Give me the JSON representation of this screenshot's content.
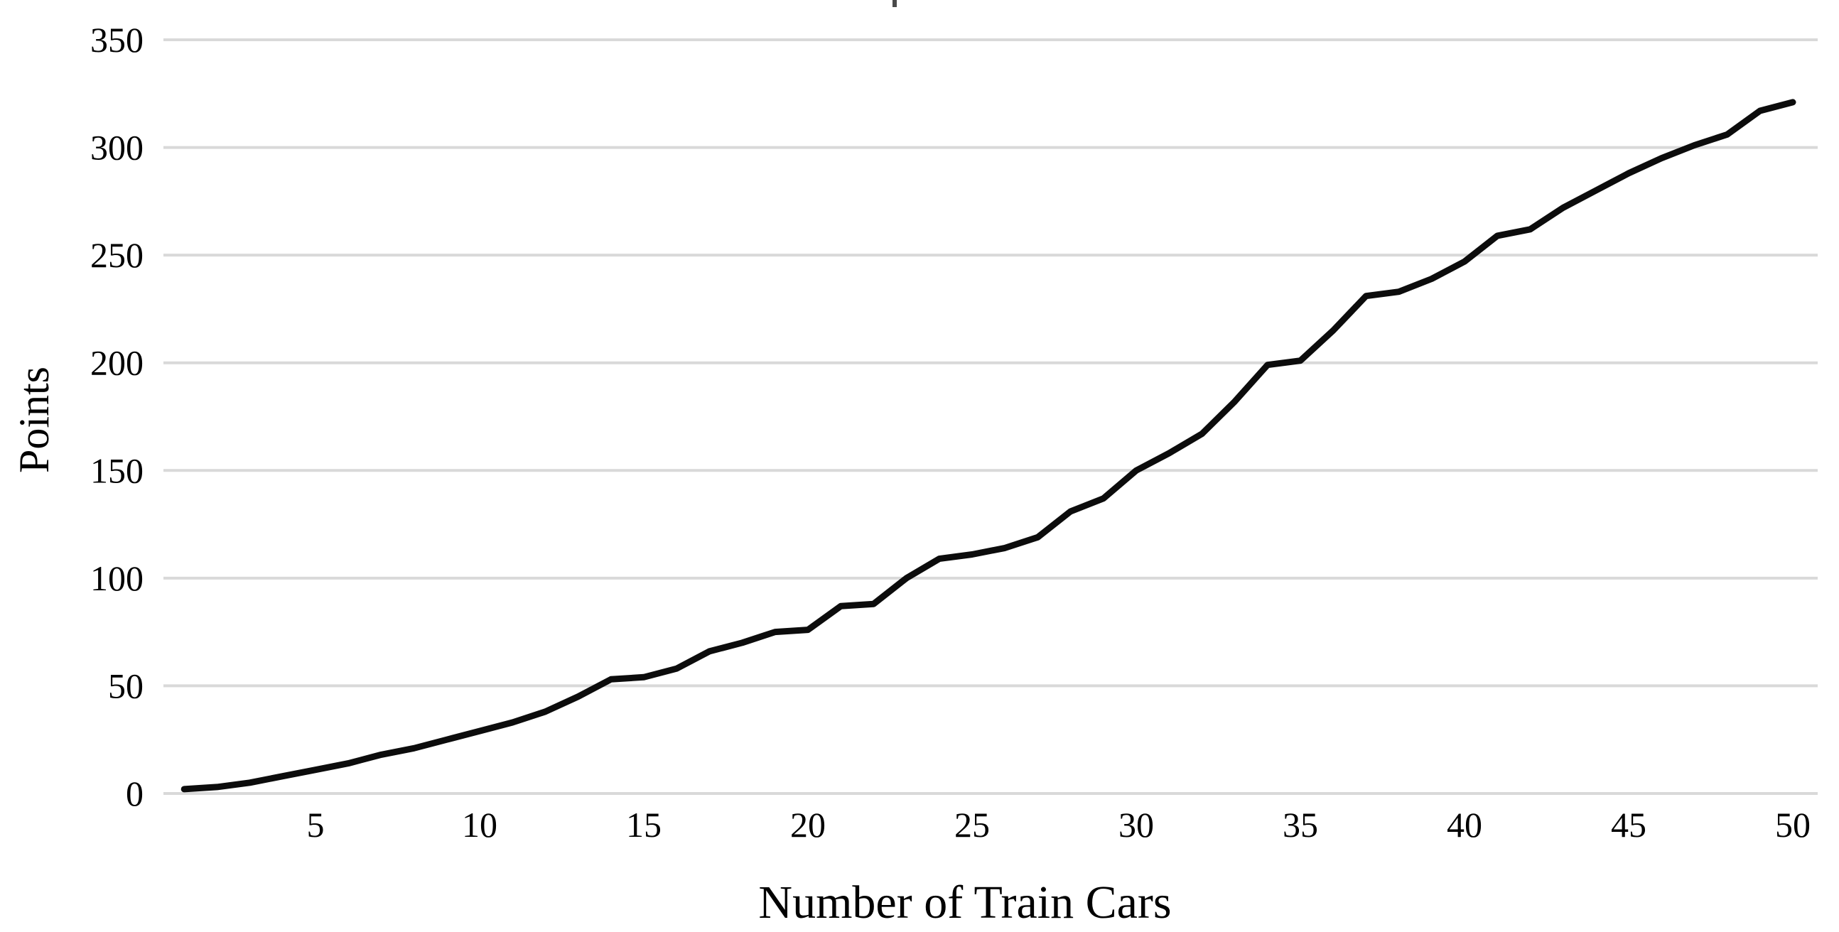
{
  "chart_data": {
    "type": "line",
    "title": "",
    "xlabel": "Number of Train Cars",
    "ylabel": "Points",
    "x": [
      1,
      2,
      3,
      4,
      5,
      6,
      7,
      8,
      9,
      10,
      11,
      12,
      13,
      14,
      15,
      16,
      17,
      18,
      19,
      20,
      21,
      22,
      23,
      24,
      25,
      26,
      27,
      28,
      29,
      30,
      31,
      32,
      33,
      34,
      35,
      36,
      37,
      38,
      39,
      40,
      41,
      42,
      43,
      44,
      45,
      46,
      47,
      48,
      49,
      50
    ],
    "series": [
      {
        "name": "Points",
        "values": [
          2,
          3,
          5,
          8,
          11,
          14,
          18,
          21,
          25,
          29,
          33,
          38,
          45,
          53,
          54,
          58,
          66,
          70,
          75,
          76,
          87,
          88,
          100,
          109,
          111,
          114,
          119,
          131,
          137,
          150,
          158,
          167,
          182,
          199,
          201,
          215,
          231,
          233,
          239,
          247,
          259,
          262,
          272,
          280,
          288,
          295,
          301,
          306,
          317,
          321
        ]
      }
    ],
    "x_ticks": [
      5,
      10,
      15,
      20,
      25,
      30,
      35,
      40,
      45,
      50
    ],
    "y_ticks": [
      0,
      50,
      100,
      150,
      200,
      250,
      300,
      350
    ],
    "xlim": [
      0.4,
      50.9
    ],
    "ylim": [
      0,
      350
    ],
    "grid": "horizontal-only",
    "legend": "none",
    "line_color": "#0c0c0c",
    "gridline_color": "#d9d9d9",
    "text_color": "#000000",
    "background_color": "#ffffff"
  }
}
